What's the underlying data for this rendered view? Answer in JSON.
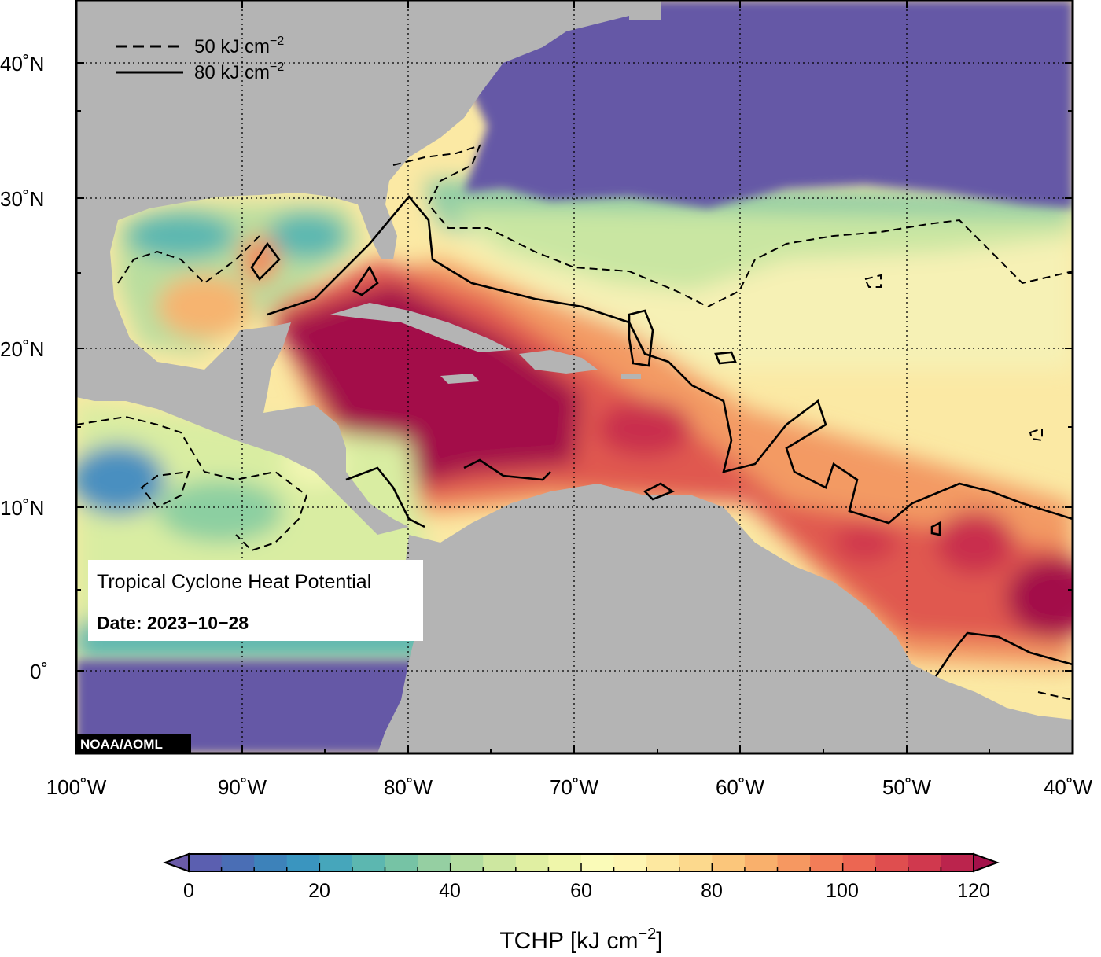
{
  "map": {
    "legend": {
      "dashed_value": "50 kJ cm",
      "dashed_exp": "−2",
      "solid_value": "80 kJ cm",
      "solid_exp": "−2"
    },
    "info_box": {
      "title": "Tropical Cyclone Heat Potential",
      "date": "Date: 2023−10−28"
    },
    "credit": "NOAA/AOML",
    "lat_labels": [
      "40˚N",
      "30˚N",
      "20˚N",
      "10˚N",
      "0˚"
    ],
    "lon_labels": [
      "100˚W",
      "90˚W",
      "80˚W",
      "70˚W",
      "60˚W",
      "50˚W",
      "40˚W"
    ],
    "colors": {
      "land": "#b4b4b4",
      "deep_ocean": "#6558a6",
      "max_tchp": "#a3114a"
    }
  },
  "colorbar": {
    "tick_labels": [
      "0",
      "20",
      "40",
      "60",
      "80",
      "100",
      "120"
    ],
    "title": "TCHP [kJ cm",
    "title_exp": "−2",
    "title_close": "]",
    "colors": [
      "#6a5aa8",
      "#5b5fb0",
      "#4a6eb5",
      "#3d82ba",
      "#3a95bf",
      "#46a6bb",
      "#5cb7b0",
      "#76c3a5",
      "#95cfa2",
      "#b2dca0",
      "#cde7a0",
      "#e0efa2",
      "#eff6aa",
      "#fafbb8",
      "#fef5b2",
      "#fde8a0",
      "#fcd98d",
      "#fbc67b",
      "#f9b06c",
      "#f69861",
      "#f27d58",
      "#ec6652",
      "#df4e4f",
      "#d0394e",
      "#bb244d",
      "#a3114a"
    ]
  }
}
